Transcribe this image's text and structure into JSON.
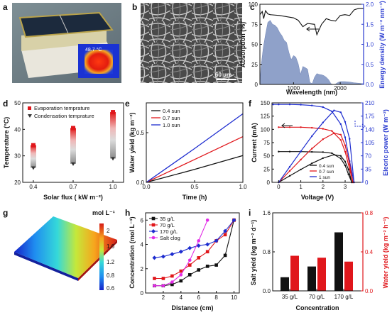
{
  "panels": {
    "a": {
      "label": "a",
      "thermal_reading": "48.7 °C"
    },
    "b": {
      "label": "b",
      "scale_bar": "60 μm"
    },
    "c": {
      "label": "c",
      "xlabel": "Wavelength (nm)",
      "ylabel_left": "Absorption (%)",
      "ylabel_right": "Energy density (W m⁻² nm⁻¹)",
      "xticks": [
        "1000",
        "2000"
      ],
      "yticks_left": [
        "0",
        "25",
        "50",
        "75",
        "100"
      ],
      "yticks_right": [
        "0.0",
        "0.5",
        "1.0",
        "1.5",
        "2.0"
      ]
    },
    "d": {
      "label": "d",
      "xlabel": "Solar flux ( kW m⁻²)",
      "ylabel": "Temperature (°C)",
      "xticks": [
        "0.4",
        "0.7",
        "1.0"
      ],
      "yticks": [
        "20",
        "30",
        "40",
        "50"
      ],
      "legend": [
        "Evaporation temprature",
        "Condensation temprature"
      ]
    },
    "e": {
      "label": "e",
      "xlabel": "Time (h)",
      "ylabel": "Water yield (kg m⁻²)",
      "xticks": [
        "0.0",
        "0.5",
        "1.0"
      ],
      "yticks": [
        "0.0",
        "0.5"
      ],
      "legend": [
        "0.4 sun",
        "0.7 sun",
        "1.0 sun"
      ]
    },
    "f": {
      "label": "f",
      "xlabel": "Voltage (V)",
      "ylabel_left": "Current (mA)",
      "ylabel_right": "Elecric power (W m⁻²)",
      "xticks": [
        "0",
        "1",
        "2",
        "3"
      ],
      "yticks_left": [
        "0",
        "25",
        "50",
        "75",
        "100",
        "125",
        "150"
      ],
      "yticks_right": [
        "0",
        "35",
        "70",
        "105",
        "140",
        "175",
        "210"
      ],
      "legend": [
        "0.4 sun",
        "0.7 sun",
        "1 sun"
      ]
    },
    "g": {
      "label": "g",
      "unit": "mol L⁻¹",
      "colorbar_ticks": [
        "2",
        "1.6",
        "1.2",
        "0.8",
        "0.6"
      ]
    },
    "h": {
      "label": "h",
      "xlabel": "Distance (cm)",
      "ylabel": "Concentration (mol L⁻¹)",
      "xticks": [
        "2",
        "4",
        "6",
        "8",
        "10"
      ],
      "yticks": [
        "0",
        "2",
        "4",
        "6"
      ],
      "legend": [
        "35 g/L",
        "70 g/L",
        "170 g/L",
        "Salt clog"
      ]
    },
    "i": {
      "label": "i",
      "xlabel": "Concentration",
      "ylabel_left": "Salt yield (kg m⁻² d⁻¹)",
      "ylabel_right": "Water yield (kg m⁻² h⁻¹)",
      "yticks_left": [
        "0.0",
        "0.8",
        "1.6"
      ],
      "yticks_right": [
        "0.0",
        "0.4",
        "0.8"
      ]
    }
  },
  "colors": {
    "black": "#111111",
    "red": "#e0161b",
    "blue": "#1d2ccf",
    "magenta": "#e22ce6",
    "fill_blue": "#8fa1c9",
    "axis_blue": "#2a3bd0"
  },
  "chart_data": [
    {
      "panel": "c",
      "type": "area",
      "xlim": [
        280,
        2500
      ],
      "ylim_left": [
        0,
        100
      ],
      "ylim_right": [
        0,
        2.0
      ],
      "series": [
        {
          "name": "Absorption",
          "axis": "left",
          "x": [
            280,
            330,
            360,
            400,
            450,
            500,
            700,
            900,
            1000,
            1100,
            1200,
            1300,
            1450,
            1500,
            1600,
            1700,
            1800,
            1900,
            2000,
            2100,
            2200,
            2300,
            2400,
            2500
          ],
          "y": [
            87,
            91,
            82,
            92,
            88,
            87,
            86,
            84,
            83,
            80,
            72,
            76,
            75,
            62,
            75,
            82,
            80,
            79,
            86,
            87,
            86,
            93,
            95,
            95
          ]
        },
        {
          "name": "Energy density",
          "axis": "right",
          "x": [
            280,
            300,
            350,
            400,
            450,
            500,
            550,
            600,
            650,
            700,
            750,
            800,
            850,
            900,
            950,
            1000,
            1050,
            1100,
            1150,
            1200,
            1250,
            1300,
            1350,
            1400,
            1450,
            1500,
            1550,
            1600,
            1650,
            1700,
            1750,
            1800,
            1850,
            1900,
            1950,
            2000,
            2100,
            2200,
            2300,
            2400,
            2500
          ],
          "y": [
            0.0,
            0.4,
            0.9,
            1.25,
            1.55,
            1.6,
            1.5,
            1.48,
            1.42,
            1.3,
            1.22,
            1.1,
            1.05,
            0.8,
            0.62,
            0.72,
            0.68,
            0.52,
            0.25,
            0.45,
            0.42,
            0.38,
            0.05,
            0.02,
            0.18,
            0.27,
            0.25,
            0.24,
            0.22,
            0.18,
            0.12,
            0.02,
            0.0,
            0.01,
            0.05,
            0.07,
            0.07,
            0.06,
            0.04,
            0.03,
            0.02
          ]
        }
      ]
    },
    {
      "panel": "d",
      "type": "scatter",
      "xlim": [
        0.32,
        1.08
      ],
      "ylim": [
        20,
        50
      ],
      "series": [
        {
          "name": "Evaporation temprature",
          "x": [
            0.4,
            0.7,
            1.0
          ],
          "y": [
            34,
            40.5,
            46.5
          ]
        },
        {
          "name": "Condensation temprature",
          "x": [
            0.4,
            0.7,
            1.0
          ],
          "y": [
            25.5,
            27,
            29
          ]
        }
      ]
    },
    {
      "panel": "e",
      "type": "line",
      "xlim": [
        0,
        1.0
      ],
      "ylim": [
        0,
        0.8
      ],
      "series": [
        {
          "name": "0.4 sun",
          "x": [
            0,
            0.5,
            1.0
          ],
          "y": [
            0,
            0.13,
            0.27
          ]
        },
        {
          "name": "0.7 sun",
          "x": [
            0,
            0.5,
            1.0
          ],
          "y": [
            0,
            0.23,
            0.46
          ]
        },
        {
          "name": "1.0 sun",
          "x": [
            0,
            0.5,
            1.0
          ],
          "y": [
            0,
            0.34,
            0.69
          ]
        }
      ]
    },
    {
      "panel": "f",
      "type": "line",
      "xlim": [
        -0.3,
        3.8
      ],
      "ylim_left": [
        0,
        150
      ],
      "ylim_right": [
        0,
        210
      ],
      "series": [
        {
          "name": "0.4 sun",
          "axis": "left",
          "x": [
            0,
            0.5,
            1.0,
            1.5,
            2.0,
            2.4,
            2.8,
            3.0,
            3.15,
            3.3
          ],
          "y": [
            58,
            58,
            58,
            57.5,
            57,
            55,
            45,
            32,
            15,
            0
          ]
        },
        {
          "name": "0.7 sun",
          "axis": "left",
          "x": [
            0,
            0.5,
            1.0,
            1.5,
            2.0,
            2.4,
            2.8,
            3.0,
            3.2,
            3.35
          ],
          "y": [
            104,
            104,
            104,
            103,
            101,
            97,
            80,
            58,
            25,
            0
          ]
        },
        {
          "name": "1 sun",
          "axis": "left",
          "x": [
            -0.25,
            0,
            0.5,
            1.0,
            1.5,
            2.0,
            2.4,
            2.8,
            3.0,
            3.2,
            3.4
          ],
          "y": [
            147,
            147,
            147,
            146.5,
            145,
            142,
            134,
            110,
            85,
            40,
            0
          ]
        },
        {
          "name": "0.4 sun power",
          "axis": "right",
          "x": [
            0,
            0.5,
            1.0,
            1.5,
            2.0,
            2.5,
            2.8,
            3.0,
            3.15,
            3.3
          ],
          "y": [
            0,
            17,
            34,
            50,
            64,
            73,
            70,
            55,
            34,
            0
          ]
        },
        {
          "name": "0.7 sun power",
          "axis": "right",
          "x": [
            0,
            0.5,
            1.0,
            1.5,
            2.0,
            2.5,
            2.8,
            3.0,
            3.2,
            3.35
          ],
          "y": [
            0,
            30,
            60,
            89,
            114,
            130,
            126,
            98,
            48,
            0
          ]
        },
        {
          "name": "1 sun power",
          "axis": "right",
          "x": [
            0,
            0.5,
            1.0,
            1.5,
            2.0,
            2.5,
            2.8,
            3.0,
            3.2,
            3.4
          ],
          "y": [
            0,
            41,
            82,
            122,
            158,
            190,
            185,
            160,
            115,
            0
          ]
        }
      ]
    },
    {
      "panel": "h",
      "type": "line",
      "xlim": [
        0,
        10.6
      ],
      "ylim": [
        0,
        6.6
      ],
      "series": [
        {
          "name": "35 g/L",
          "x": [
            1,
            2,
            3,
            4,
            5,
            6,
            7,
            8,
            9,
            10
          ],
          "y": [
            0.6,
            0.6,
            0.7,
            1.0,
            1.5,
            1.9,
            2.2,
            2.3,
            3.1,
            6.0
          ]
        },
        {
          "name": "70 g/L",
          "x": [
            1,
            2,
            3,
            4,
            5,
            6,
            7,
            8,
            9,
            10
          ],
          "y": [
            1.2,
            1.2,
            1.4,
            1.8,
            2.3,
            2.9,
            3.4,
            4.3,
            4.8,
            6.0
          ]
        },
        {
          "name": "170 g/L",
          "x": [
            1,
            2,
            3,
            4,
            5,
            6,
            7,
            8,
            9,
            10
          ],
          "y": [
            2.9,
            3.0,
            3.2,
            3.4,
            3.7,
            3.9,
            4.0,
            4.3,
            5.1,
            6.0
          ]
        },
        {
          "name": "Salt clog",
          "x": [
            1,
            2,
            3,
            4,
            5,
            6,
            7
          ],
          "y": [
            0.6,
            0.6,
            0.9,
            1.5,
            2.7,
            4.3,
            6.0
          ]
        }
      ]
    },
    {
      "panel": "i",
      "type": "bar",
      "categories": [
        "35 g/L",
        "70 g/L",
        "170 g/L"
      ],
      "ylim_left": [
        0,
        1.6
      ],
      "ylim_right": [
        0,
        0.8
      ],
      "series": [
        {
          "name": "Salt yield",
          "axis": "left",
          "values": [
            0.28,
            0.5,
            1.2
          ]
        },
        {
          "name": "Water yield",
          "axis": "right",
          "values": [
            0.36,
            0.34,
            0.3
          ]
        }
      ]
    }
  ]
}
